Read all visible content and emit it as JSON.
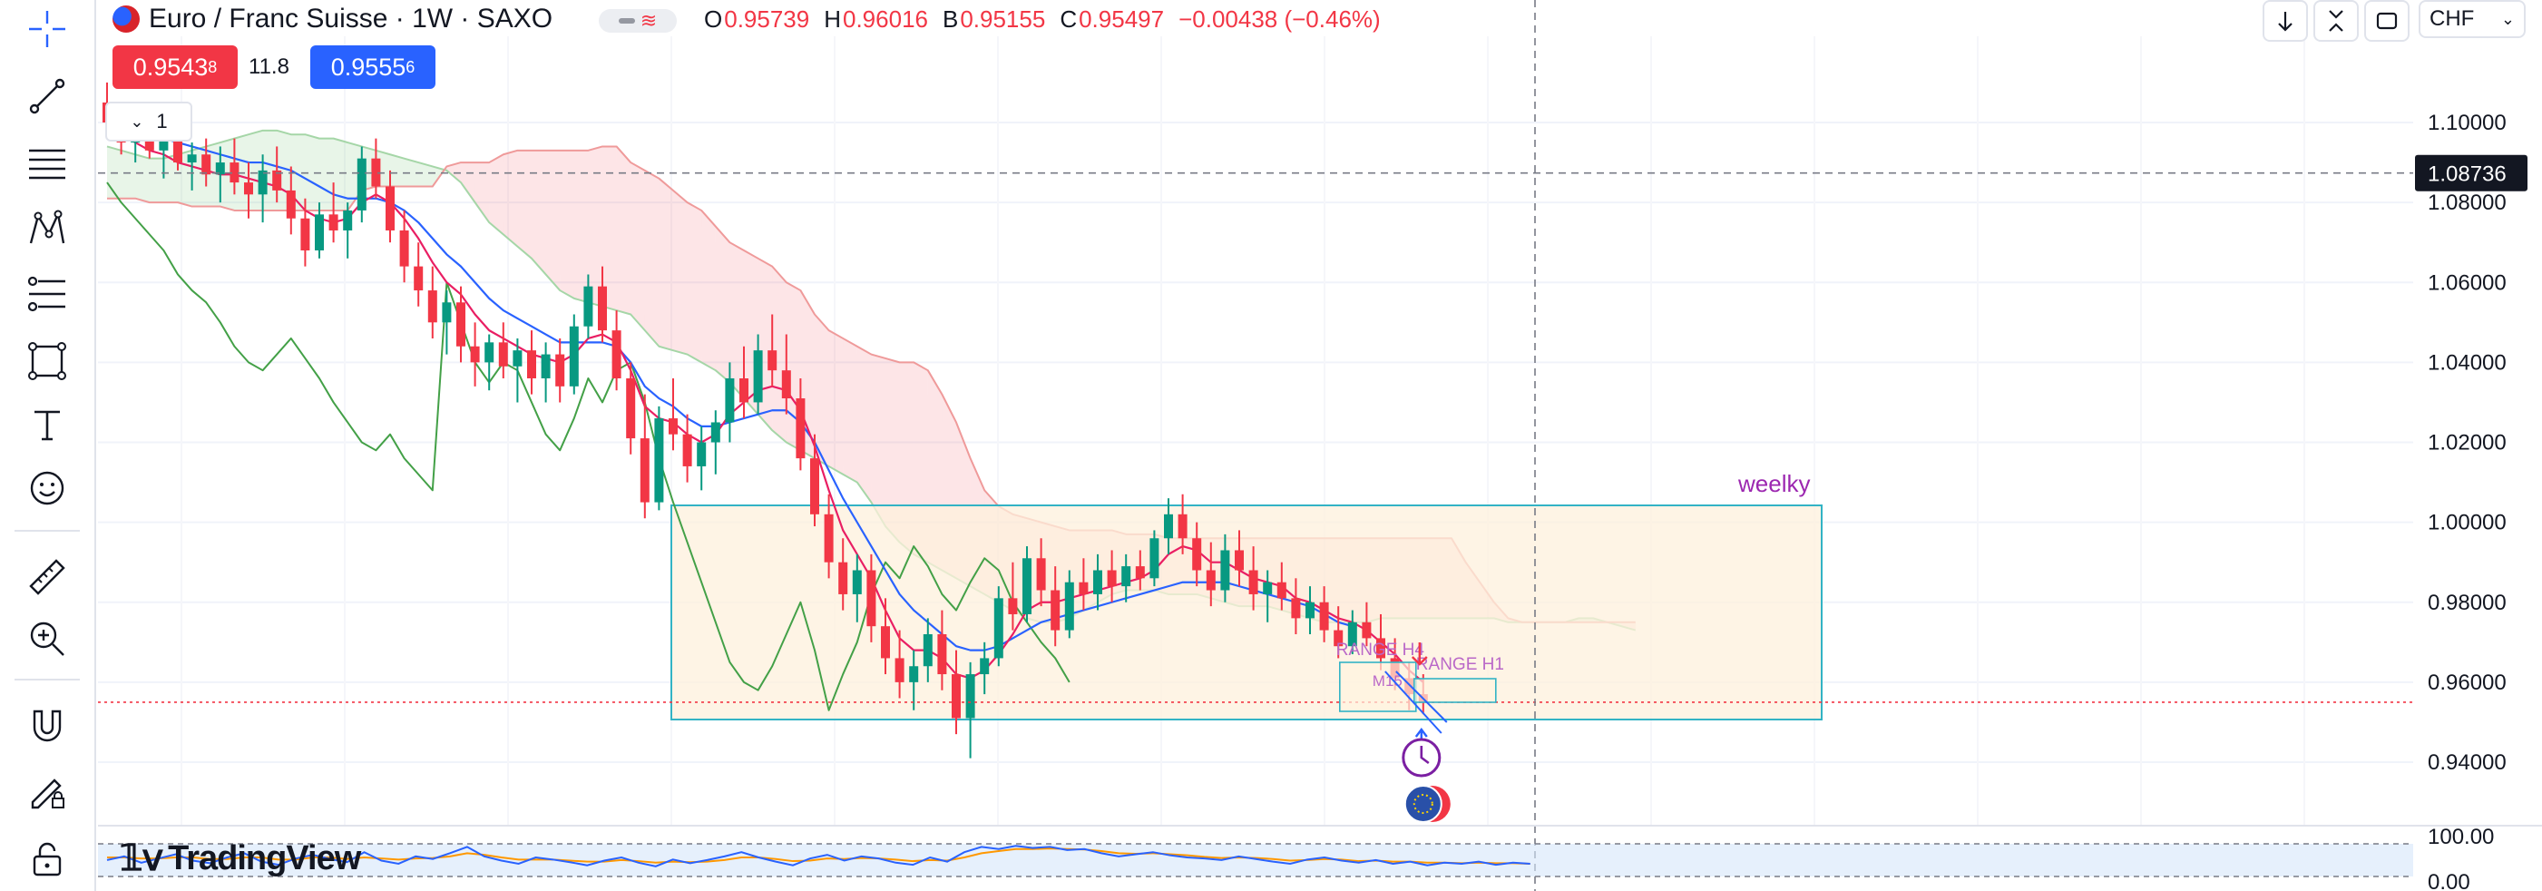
{
  "header": {
    "symbol_title": "Euro / Franc Suisse · 1W · SAXO",
    "ohlc": [
      {
        "key": "O",
        "value": "0.95739"
      },
      {
        "key": "H",
        "value": "0.96016"
      },
      {
        "key": "B",
        "value": "0.95155"
      },
      {
        "key": "C",
        "value": "0.95497"
      }
    ],
    "change": "−0.00438 (−0.46%)",
    "colors": {
      "up": "#089981",
      "down": "#f23645"
    }
  },
  "trade": {
    "sell_price": "0.9543",
    "sell_sup": "8",
    "spread": "11.8",
    "buy_price": "0.9555",
    "buy_sup": "6",
    "sell_color": "#f23645",
    "buy_color": "#2962ff"
  },
  "legend_toggle": {
    "count": "1",
    "icon": "chevron-down-icon"
  },
  "top_right": {
    "currency": "CHF"
  },
  "toolbar_icons": [
    "crosshair-icon",
    "trend-line-icon",
    "fib-icon",
    "pattern-icon",
    "forecast-icon",
    "shapes-icon",
    "text-icon",
    "emoji-icon",
    "ruler-icon",
    "zoom-icon",
    "magnet-icon",
    "lock-draw-icon",
    "lock-icon"
  ],
  "axis": {
    "price_labels": [
      "1.10000",
      "1.08000",
      "1.06000",
      "1.04000",
      "1.02000",
      "1.00000",
      "0.98000",
      "0.96000",
      "0.94000"
    ],
    "crosshair_price": "1.08736",
    "oscillator_labels": [
      "100.00",
      "0.00"
    ]
  },
  "annotations": {
    "weekly_label": "weelky",
    "range_h4": "RANGE H4",
    "range_h1": "RANGE H1",
    "m15": "M15"
  },
  "branding": {
    "logo_text": "TradingView"
  },
  "chart_data": {
    "type": "candlestick",
    "ylim": [
      0.93,
      1.12
    ],
    "current_price": 0.955,
    "crosshair_price": 1.08736,
    "candles": [
      [
        1.105,
        1.11,
        1.096,
        1.1
      ],
      [
        1.1,
        1.104,
        1.092,
        1.095
      ],
      [
        1.095,
        1.101,
        1.09,
        1.098
      ],
      [
        1.098,
        1.103,
        1.091,
        1.093
      ],
      [
        1.093,
        1.099,
        1.086,
        1.096
      ],
      [
        1.096,
        1.1,
        1.088,
        1.09
      ],
      [
        1.09,
        1.095,
        1.083,
        1.092
      ],
      [
        1.092,
        1.096,
        1.084,
        1.087
      ],
      [
        1.087,
        1.094,
        1.08,
        1.09
      ],
      [
        1.09,
        1.096,
        1.082,
        1.085
      ],
      [
        1.085,
        1.09,
        1.076,
        1.082
      ],
      [
        1.082,
        1.092,
        1.075,
        1.088
      ],
      [
        1.088,
        1.094,
        1.08,
        1.083
      ],
      [
        1.083,
        1.089,
        1.072,
        1.076
      ],
      [
        1.076,
        1.081,
        1.064,
        1.068
      ],
      [
        1.068,
        1.08,
        1.066,
        1.077
      ],
      [
        1.077,
        1.085,
        1.07,
        1.073
      ],
      [
        1.073,
        1.08,
        1.066,
        1.078
      ],
      [
        1.078,
        1.094,
        1.075,
        1.091
      ],
      [
        1.091,
        1.096,
        1.081,
        1.084
      ],
      [
        1.084,
        1.088,
        1.07,
        1.073
      ],
      [
        1.073,
        1.078,
        1.06,
        1.064
      ],
      [
        1.064,
        1.07,
        1.054,
        1.058
      ],
      [
        1.058,
        1.064,
        1.046,
        1.05
      ],
      [
        1.05,
        1.058,
        1.042,
        1.055
      ],
      [
        1.055,
        1.059,
        1.04,
        1.044
      ],
      [
        1.044,
        1.05,
        1.034,
        1.04
      ],
      [
        1.04,
        1.047,
        1.033,
        1.045
      ],
      [
        1.045,
        1.05,
        1.036,
        1.039
      ],
      [
        1.039,
        1.046,
        1.03,
        1.043
      ],
      [
        1.043,
        1.048,
        1.032,
        1.036
      ],
      [
        1.036,
        1.045,
        1.03,
        1.042
      ],
      [
        1.042,
        1.046,
        1.03,
        1.034
      ],
      [
        1.034,
        1.052,
        1.032,
        1.049
      ],
      [
        1.049,
        1.062,
        1.046,
        1.059
      ],
      [
        1.059,
        1.064,
        1.045,
        1.048
      ],
      [
        1.048,
        1.053,
        1.033,
        1.036
      ],
      [
        1.036,
        1.04,
        1.017,
        1.021
      ],
      [
        1.021,
        1.032,
        1.001,
        1.005
      ],
      [
        1.005,
        1.029,
        1.003,
        1.026
      ],
      [
        1.026,
        1.036,
        1.018,
        1.022
      ],
      [
        1.022,
        1.027,
        1.01,
        1.014
      ],
      [
        1.014,
        1.024,
        1.008,
        1.02
      ],
      [
        1.02,
        1.028,
        1.012,
        1.025
      ],
      [
        1.025,
        1.04,
        1.02,
        1.036
      ],
      [
        1.036,
        1.044,
        1.026,
        1.03
      ],
      [
        1.03,
        1.047,
        1.027,
        1.043
      ],
      [
        1.043,
        1.052,
        1.034,
        1.038
      ],
      [
        1.038,
        1.047,
        1.027,
        1.031
      ],
      [
        1.031,
        1.036,
        1.013,
        1.016
      ],
      [
        1.016,
        1.022,
        0.999,
        1.002
      ],
      [
        1.002,
        1.007,
        0.986,
        0.99
      ],
      [
        0.99,
        0.996,
        0.978,
        0.982
      ],
      [
        0.982,
        0.992,
        0.975,
        0.988
      ],
      [
        0.988,
        0.992,
        0.97,
        0.974
      ],
      [
        0.974,
        0.981,
        0.962,
        0.966
      ],
      [
        0.966,
        0.973,
        0.956,
        0.96
      ],
      [
        0.96,
        0.968,
        0.953,
        0.964
      ],
      [
        0.964,
        0.976,
        0.96,
        0.972
      ],
      [
        0.972,
        0.978,
        0.958,
        0.962
      ],
      [
        0.962,
        0.968,
        0.947,
        0.951
      ],
      [
        0.951,
        0.965,
        0.941,
        0.962
      ],
      [
        0.962,
        0.97,
        0.957,
        0.966
      ],
      [
        0.966,
        0.984,
        0.964,
        0.981
      ],
      [
        0.981,
        0.99,
        0.973,
        0.977
      ],
      [
        0.977,
        0.994,
        0.975,
        0.991
      ],
      [
        0.991,
        0.996,
        0.979,
        0.983
      ],
      [
        0.983,
        0.989,
        0.969,
        0.973
      ],
      [
        0.973,
        0.988,
        0.971,
        0.985
      ],
      [
        0.985,
        0.991,
        0.978,
        0.982
      ],
      [
        0.982,
        0.992,
        0.978,
        0.988
      ],
      [
        0.988,
        0.993,
        0.98,
        0.984
      ],
      [
        0.984,
        0.992,
        0.98,
        0.989
      ],
      [
        0.989,
        0.993,
        0.983,
        0.986
      ],
      [
        0.986,
        0.998,
        0.984,
        0.996
      ],
      [
        0.996,
        1.006,
        0.992,
        1.002
      ],
      [
        1.002,
        1.007,
        0.992,
        0.996
      ],
      [
        0.996,
        1.0,
        0.984,
        0.988
      ],
      [
        0.988,
        0.995,
        0.979,
        0.983
      ],
      [
        0.983,
        0.997,
        0.98,
        0.993
      ],
      [
        0.993,
        0.998,
        0.984,
        0.988
      ],
      [
        0.988,
        0.994,
        0.978,
        0.982
      ],
      [
        0.982,
        0.988,
        0.975,
        0.985
      ],
      [
        0.985,
        0.99,
        0.978,
        0.981
      ],
      [
        0.981,
        0.986,
        0.972,
        0.976
      ],
      [
        0.976,
        0.984,
        0.972,
        0.98
      ],
      [
        0.98,
        0.984,
        0.97,
        0.973
      ],
      [
        0.973,
        0.979,
        0.966,
        0.969
      ],
      [
        0.969,
        0.978,
        0.967,
        0.975
      ],
      [
        0.975,
        0.98,
        0.969,
        0.971
      ],
      [
        0.971,
        0.977,
        0.963,
        0.966
      ],
      [
        0.966,
        0.971,
        0.958,
        0.961
      ],
      [
        0.961,
        0.965,
        0.953,
        0.957
      ],
      [
        0.957,
        0.962,
        0.952,
        0.955
      ]
    ],
    "tenkan": [
      1.1,
      1.097,
      1.095,
      1.093,
      1.092,
      1.09,
      1.089,
      1.088,
      1.087,
      1.087,
      1.086,
      1.085,
      1.084,
      1.082,
      1.078,
      1.076,
      1.075,
      1.076,
      1.08,
      1.082,
      1.08,
      1.076,
      1.071,
      1.065,
      1.06,
      1.057,
      1.052,
      1.048,
      1.046,
      1.044,
      1.042,
      1.041,
      1.04,
      1.042,
      1.046,
      1.047,
      1.045,
      1.038,
      1.029,
      1.026,
      1.025,
      1.022,
      1.02,
      1.022,
      1.027,
      1.03,
      1.033,
      1.034,
      1.033,
      1.028,
      1.019,
      1.008,
      0.998,
      0.992,
      0.986,
      0.978,
      0.971,
      0.968,
      0.968,
      0.966,
      0.962,
      0.961,
      0.963,
      0.967,
      0.972,
      0.978,
      0.98,
      0.98,
      0.981,
      0.982,
      0.983,
      0.984,
      0.985,
      0.986,
      0.988,
      0.992,
      0.994,
      0.993,
      0.99,
      0.99,
      0.988,
      0.986,
      0.985,
      0.984,
      0.981,
      0.98,
      0.978,
      0.976,
      0.975,
      0.973,
      0.97,
      0.967,
      0.963,
      0.96
    ],
    "kijun": [
      1.101,
      1.099,
      1.098,
      1.097,
      1.096,
      1.095,
      1.094,
      1.093,
      1.092,
      1.091,
      1.09,
      1.09,
      1.089,
      1.088,
      1.086,
      1.084,
      1.082,
      1.081,
      1.081,
      1.081,
      1.08,
      1.078,
      1.075,
      1.071,
      1.067,
      1.064,
      1.06,
      1.056,
      1.053,
      1.051,
      1.049,
      1.047,
      1.045,
      1.045,
      1.045,
      1.045,
      1.044,
      1.04,
      1.034,
      1.031,
      1.029,
      1.026,
      1.024,
      1.024,
      1.025,
      1.026,
      1.027,
      1.028,
      1.028,
      1.025,
      1.02,
      1.013,
      1.006,
      1.0,
      0.994,
      0.988,
      0.982,
      0.978,
      0.975,
      0.972,
      0.969,
      0.968,
      0.968,
      0.969,
      0.971,
      0.973,
      0.975,
      0.976,
      0.977,
      0.978,
      0.979,
      0.98,
      0.981,
      0.982,
      0.983,
      0.984,
      0.985,
      0.985,
      0.985,
      0.985,
      0.984,
      0.983,
      0.982,
      0.981,
      0.98,
      0.979,
      0.977,
      0.975,
      0.974
    ],
    "chikou": [
      1.085,
      1.08,
      1.076,
      1.072,
      1.068,
      1.062,
      1.058,
      1.055,
      1.05,
      1.044,
      1.04,
      1.038,
      1.042,
      1.046,
      1.041,
      1.036,
      1.03,
      1.025,
      1.02,
      1.018,
      1.022,
      1.016,
      1.012,
      1.008,
      1.06,
      1.05,
      1.04,
      1.035,
      1.04,
      1.038,
      1.03,
      1.022,
      1.018,
      1.026,
      1.036,
      1.03,
      1.038,
      1.04,
      1.03,
      1.016,
      1.005,
      0.995,
      0.985,
      0.975,
      0.965,
      0.96,
      0.958,
      0.964,
      0.972,
      0.98,
      0.968,
      0.953,
      0.962,
      0.97,
      0.982,
      0.99,
      0.986,
      0.994,
      0.989,
      0.982,
      0.978,
      0.985,
      0.991,
      0.988,
      0.98,
      0.975,
      0.97,
      0.966,
      0.96
    ],
    "senkou_a": [
      1.094,
      1.093,
      1.092,
      1.091,
      1.091,
      1.092,
      1.093,
      1.094,
      1.095,
      1.096,
      1.097,
      1.098,
      1.098,
      1.097,
      1.097,
      1.096,
      1.096,
      1.095,
      1.094,
      1.093,
      1.092,
      1.091,
      1.09,
      1.089,
      1.088,
      1.085,
      1.08,
      1.075,
      1.072,
      1.069,
      1.066,
      1.062,
      1.058,
      1.056,
      1.055,
      1.054,
      1.053,
      1.052,
      1.048,
      1.044,
      1.043,
      1.042,
      1.04,
      1.038,
      1.035,
      1.031,
      1.027,
      1.023,
      1.02,
      1.018,
      1.016,
      1.014,
      1.012,
      1.01,
      1.005,
      0.999,
      0.995,
      0.992,
      0.99,
      0.988,
      0.986,
      0.984,
      0.982,
      0.98,
      0.978,
      0.976,
      0.975,
      0.975,
      0.976,
      0.978,
      0.98,
      0.982,
      0.983,
      0.983,
      0.983,
      0.982,
      0.982,
      0.982,
      0.981,
      0.98,
      0.979,
      0.979,
      0.979,
      0.978,
      0.977,
      0.976,
      0.975,
      0.975,
      0.975,
      0.975,
      0.976,
      0.976,
      0.976,
      0.976,
      0.976,
      0.976,
      0.976,
      0.976,
      0.976,
      0.975,
      0.975,
      0.975,
      0.975,
      0.975,
      0.976,
      0.976,
      0.975,
      0.974,
      0.973
    ],
    "senkou_b": [
      1.081,
      1.081,
      1.081,
      1.08,
      1.08,
      1.08,
      1.079,
      1.079,
      1.079,
      1.078,
      1.078,
      1.078,
      1.078,
      1.078,
      1.078,
      1.078,
      1.078,
      1.078,
      1.083,
      1.084,
      1.084,
      1.084,
      1.084,
      1.084,
      1.089,
      1.09,
      1.09,
      1.09,
      1.092,
      1.093,
      1.093,
      1.093,
      1.093,
      1.093,
      1.093,
      1.094,
      1.094,
      1.09,
      1.088,
      1.086,
      1.083,
      1.08,
      1.078,
      1.074,
      1.07,
      1.068,
      1.066,
      1.064,
      1.06,
      1.058,
      1.052,
      1.048,
      1.046,
      1.044,
      1.042,
      1.041,
      1.04,
      1.04,
      1.038,
      1.032,
      1.025,
      1.016,
      1.008,
      1.004,
      1.002,
      1.001,
      1.0,
      0.999,
      0.998,
      0.998,
      0.998,
      0.998,
      0.997,
      0.997,
      0.997,
      0.996,
      0.996,
      0.996,
      0.996,
      0.996,
      0.996,
      0.996,
      0.996,
      0.996,
      0.996,
      0.996,
      0.996,
      0.996,
      0.996,
      0.996,
      0.996,
      0.996,
      0.996,
      0.996,
      0.996,
      0.996,
      0.99,
      0.985,
      0.98,
      0.976,
      0.975,
      0.975,
      0.975,
      0.975,
      0.975,
      0.975,
      0.975,
      0.975,
      0.975
    ],
    "rsi_series_1": [
      45,
      52,
      40,
      48,
      56,
      44,
      39,
      50,
      58,
      42,
      36,
      48,
      55,
      47,
      41,
      60,
      44,
      38,
      52,
      47,
      58,
      70,
      52,
      44,
      38,
      50,
      46,
      41,
      35,
      44,
      50,
      40,
      33,
      46,
      39,
      45,
      52,
      60,
      50,
      42,
      35,
      48,
      55,
      44,
      52,
      48,
      40,
      36,
      50,
      42,
      60,
      70,
      66,
      72,
      68,
      70,
      64,
      66,
      58,
      52,
      56,
      60,
      54,
      50,
      48,
      45,
      52,
      47,
      42,
      38,
      46,
      50,
      44,
      40,
      45,
      38,
      42,
      35,
      40,
      38,
      42,
      36,
      40,
      38
    ],
    "rsi_series_2": [
      50,
      50,
      48,
      48,
      50,
      50,
      47,
      47,
      50,
      50,
      46,
      46,
      50,
      50,
      47,
      50,
      48,
      46,
      48,
      49,
      52,
      58,
      55,
      50,
      46,
      46,
      46,
      44,
      42,
      42,
      45,
      43,
      40,
      42,
      41,
      42,
      45,
      50,
      50,
      47,
      43,
      44,
      48,
      47,
      49,
      48,
      46,
      43,
      45,
      44,
      50,
      58,
      62,
      66,
      66,
      67,
      66,
      65,
      62,
      58,
      57,
      58,
      56,
      54,
      51,
      49,
      50,
      49,
      47,
      44,
      45,
      47,
      46,
      43,
      44,
      42,
      42,
      40,
      40,
      39,
      40,
      39,
      39,
      38
    ]
  }
}
